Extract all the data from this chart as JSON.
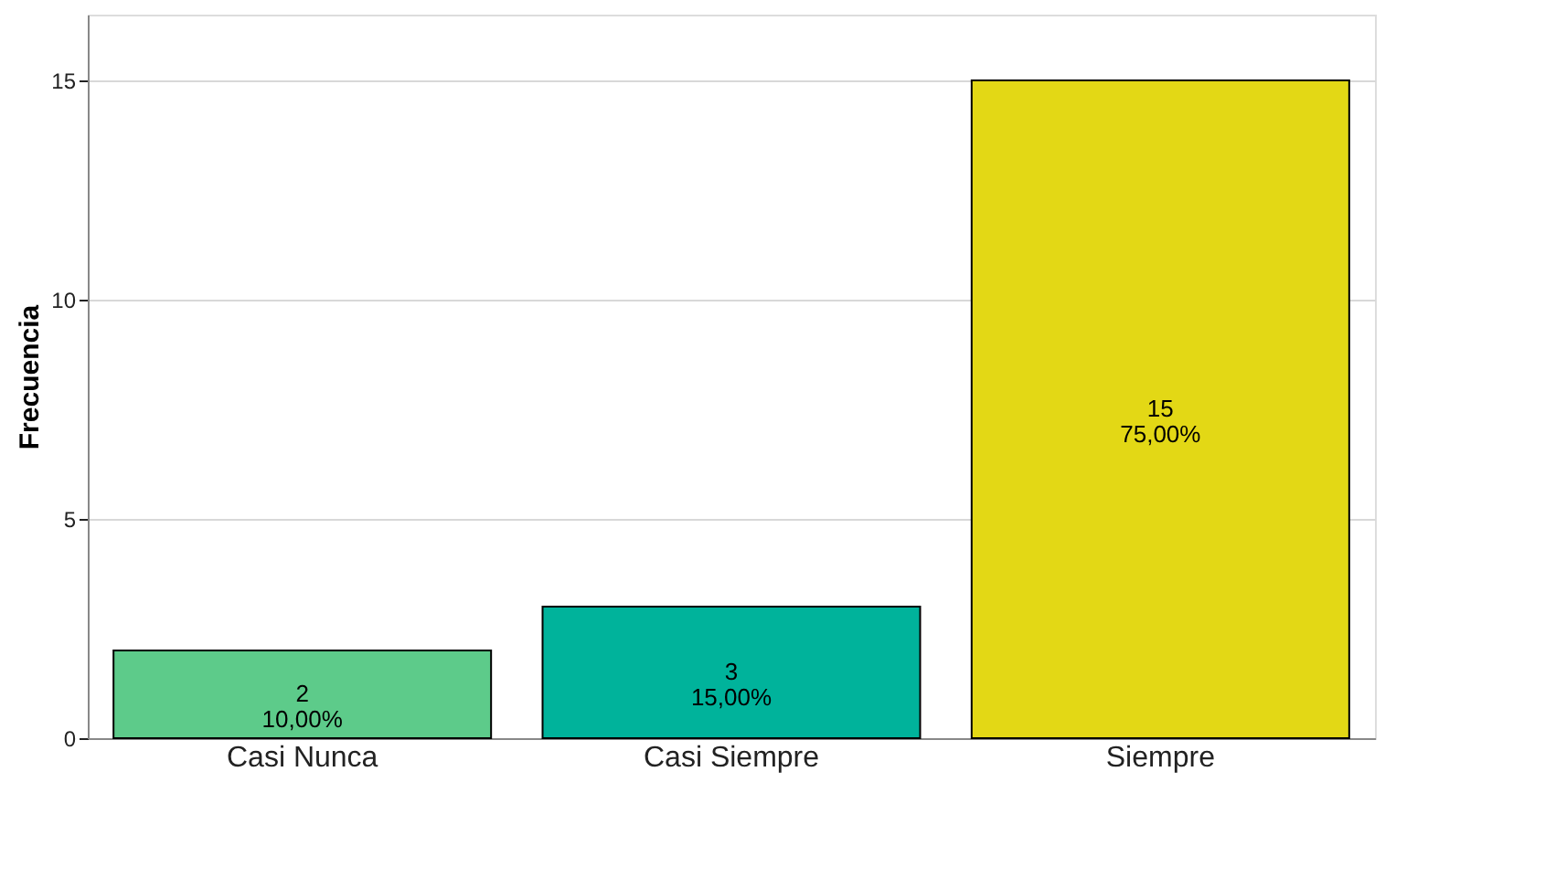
{
  "chart_data": {
    "type": "bar",
    "ylabel": "Frecuencia",
    "categories": [
      "Casi Nunca",
      "Casi Siempre",
      "Siempre"
    ],
    "values": [
      2,
      3,
      15
    ],
    "colors": [
      "#5dcb8a",
      "#00b39b",
      "#e3d815"
    ],
    "value_labels": [
      "2\n10,00%",
      "3\n15,00%",
      "15\n75,00%"
    ],
    "ylim": [
      0,
      16.5
    ],
    "yticks": [
      0,
      5,
      10,
      15
    ],
    "grid": "y",
    "legend": false
  }
}
